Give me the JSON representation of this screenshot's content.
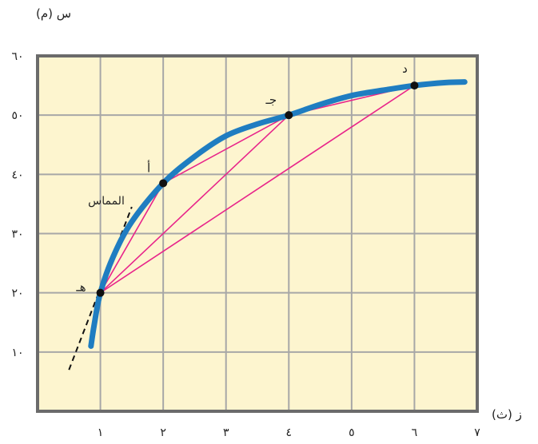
{
  "chart_data": {
    "type": "line",
    "xlabel": "ز (ث)",
    "ylabel": "س (م)",
    "xlim": [
      0,
      7
    ],
    "ylim": [
      0,
      60
    ],
    "x_ticks": [
      {
        "v": 1,
        "label": "١"
      },
      {
        "v": 2,
        "label": "٢"
      },
      {
        "v": 3,
        "label": "٣"
      },
      {
        "v": 4,
        "label": "٤"
      },
      {
        "v": 5,
        "label": "٥"
      },
      {
        "v": 6,
        "label": "٦"
      },
      {
        "v": 7,
        "label": "٧"
      }
    ],
    "y_ticks": [
      {
        "v": 10,
        "label": "١٠"
      },
      {
        "v": 20,
        "label": "٢٠"
      },
      {
        "v": 30,
        "label": "٣٠"
      },
      {
        "v": 40,
        "label": "٤٠"
      },
      {
        "v": 50,
        "label": "٥٠"
      },
      {
        "v": 60,
        "label": "٦٠"
      }
    ],
    "grid": true,
    "curve": {
      "x": [
        0.85,
        0.9,
        1.0,
        1.2,
        1.5,
        2.0,
        2.5,
        3.0,
        3.5,
        4.0,
        4.5,
        5.0,
        5.5,
        6.0,
        6.5,
        6.8
      ],
      "y": [
        11,
        14.5,
        20,
        26,
        32,
        38.5,
        43,
        46.5,
        48.5,
        50,
        51.8,
        53.3,
        54.2,
        55,
        55.5,
        55.6
      ]
    },
    "points": [
      {
        "name": "هـ",
        "x": 1,
        "y": 20
      },
      {
        "name": "أ",
        "x": 2,
        "y": 38.5
      },
      {
        "name": "جـ",
        "x": 4,
        "y": 50
      },
      {
        "name": "د",
        "x": 6,
        "y": 55
      }
    ],
    "secants": [
      [
        "هـ",
        "أ"
      ],
      [
        "هـ",
        "جـ"
      ],
      [
        "هـ",
        "د"
      ],
      [
        "أ",
        "جـ"
      ],
      [
        "جـ",
        "د"
      ]
    ],
    "tangent": {
      "label": "المماس",
      "x": [
        0.5,
        1.5
      ],
      "y": [
        7,
        34.5
      ]
    },
    "colors": {
      "background": "#fdf5cf",
      "grid": "#a7a7a7",
      "frame": "#6b6b6b",
      "curve": "#1f7dc1",
      "secant": "#e8248a",
      "point": "#111111"
    }
  }
}
